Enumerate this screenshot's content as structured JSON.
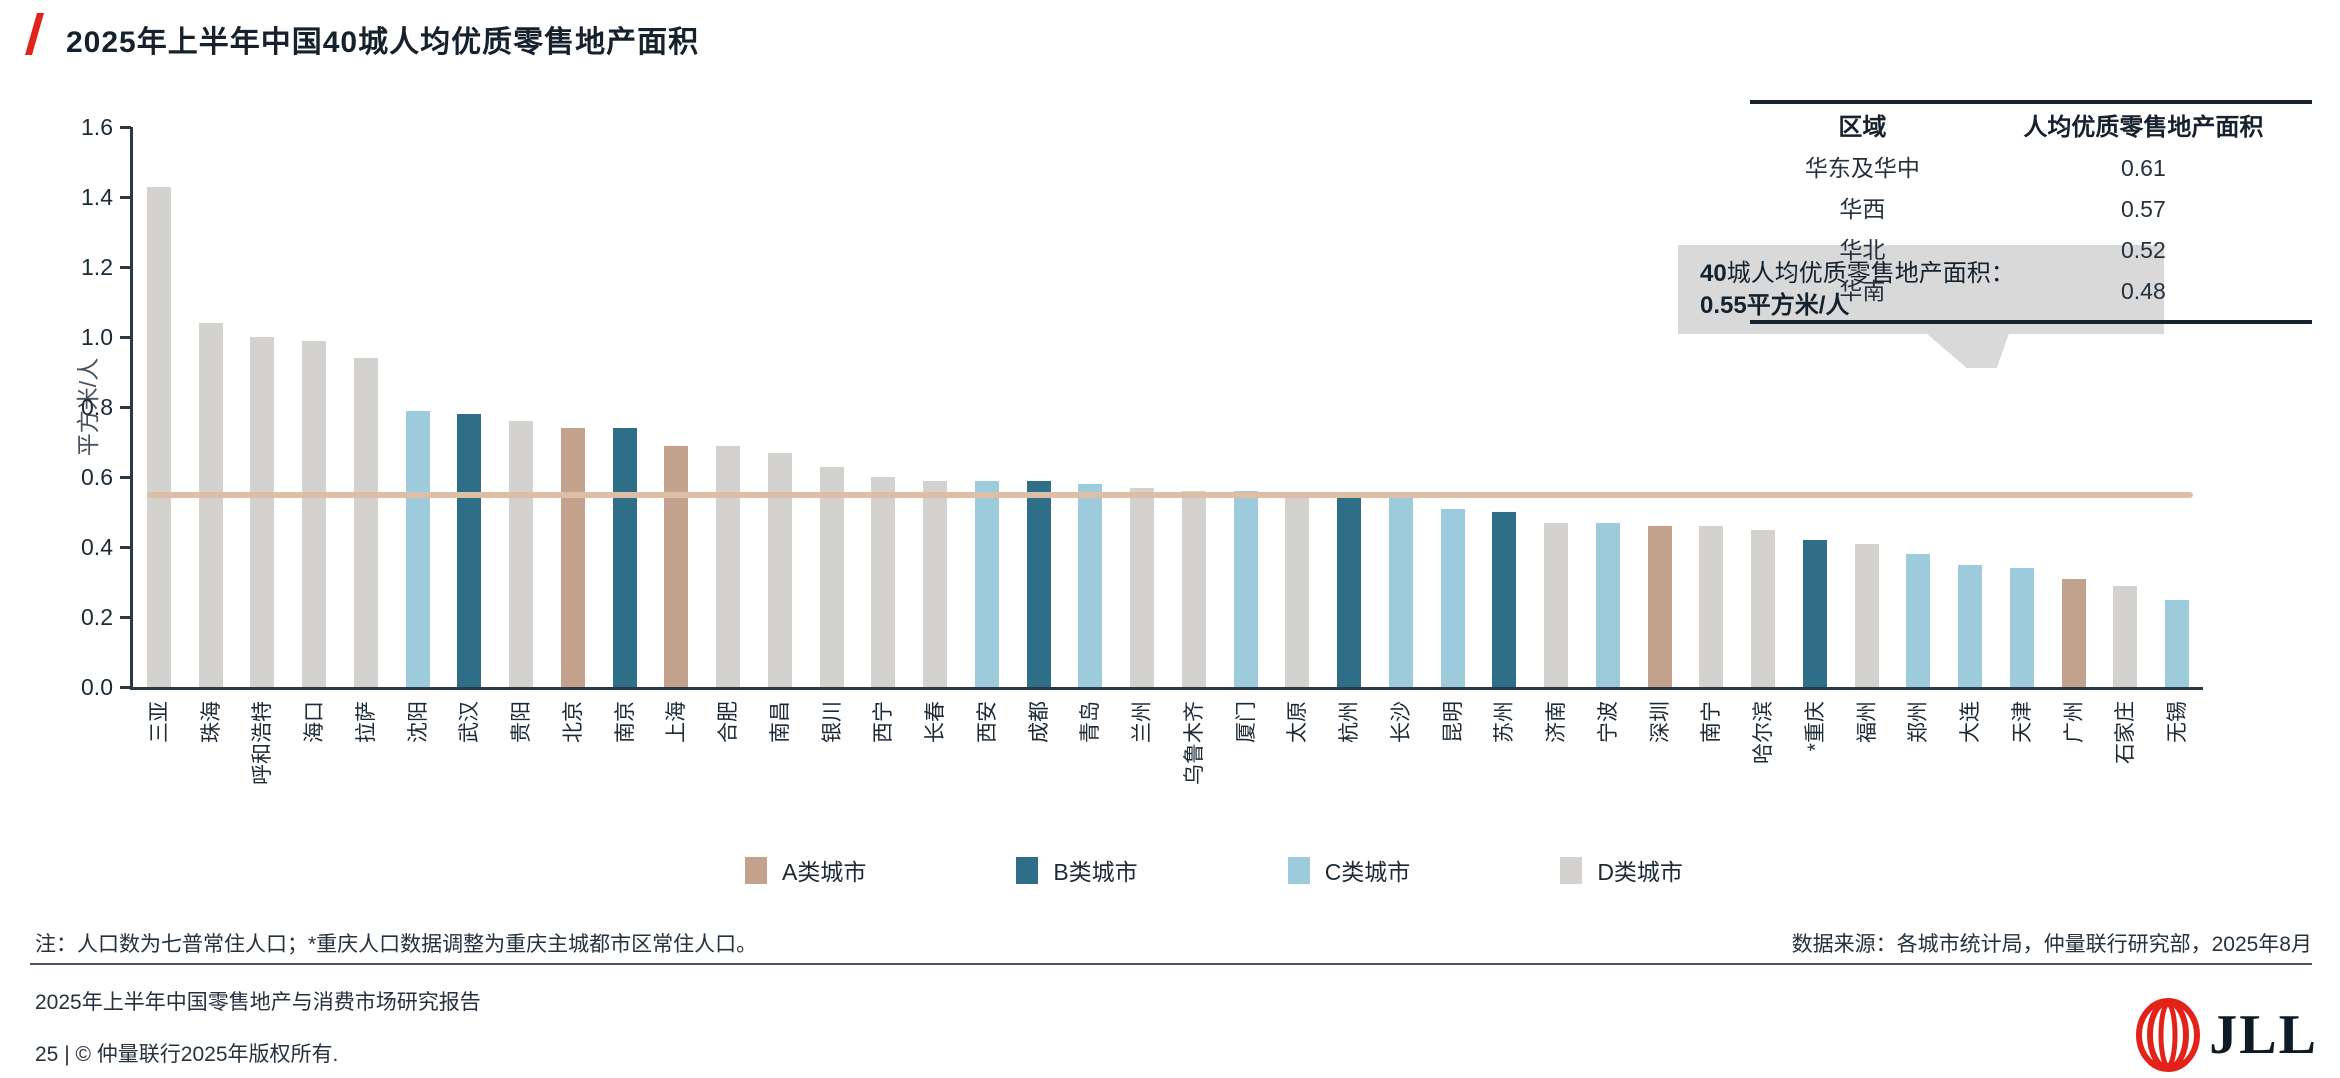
{
  "title": "2025年上半年中国40城人均优质零售地产面积",
  "chart_data": {
    "type": "bar",
    "title": "2025年上半年中国40城人均优质零售地产面积",
    "ylabel": "平方米/人",
    "ylim": [
      0,
      1.6
    ],
    "y_ticks": [
      0.0,
      0.2,
      0.4,
      0.6,
      0.8,
      1.0,
      1.2,
      1.4,
      1.6
    ],
    "grid": false,
    "average_line": 0.55,
    "cities": [
      {
        "name": "三亚",
        "value": 1.43,
        "tier": "D"
      },
      {
        "name": "珠海",
        "value": 1.04,
        "tier": "D"
      },
      {
        "name": "呼和浩特",
        "value": 1.0,
        "tier": "D"
      },
      {
        "name": "海口",
        "value": 0.99,
        "tier": "D"
      },
      {
        "name": "拉萨",
        "value": 0.94,
        "tier": "D"
      },
      {
        "name": "沈阳",
        "value": 0.79,
        "tier": "C"
      },
      {
        "name": "武汉",
        "value": 0.78,
        "tier": "B"
      },
      {
        "name": "贵阳",
        "value": 0.76,
        "tier": "D"
      },
      {
        "name": "北京",
        "value": 0.74,
        "tier": "A"
      },
      {
        "name": "南京",
        "value": 0.74,
        "tier": "B"
      },
      {
        "name": "上海",
        "value": 0.69,
        "tier": "A"
      },
      {
        "name": "合肥",
        "value": 0.69,
        "tier": "D"
      },
      {
        "name": "南昌",
        "value": 0.67,
        "tier": "D"
      },
      {
        "name": "银川",
        "value": 0.63,
        "tier": "D"
      },
      {
        "name": "西宁",
        "value": 0.6,
        "tier": "D"
      },
      {
        "name": "长春",
        "value": 0.59,
        "tier": "D"
      },
      {
        "name": "西安",
        "value": 0.59,
        "tier": "C"
      },
      {
        "name": "成都",
        "value": 0.59,
        "tier": "B"
      },
      {
        "name": "青岛",
        "value": 0.58,
        "tier": "C"
      },
      {
        "name": "兰州",
        "value": 0.57,
        "tier": "D"
      },
      {
        "name": "乌鲁木齐",
        "value": 0.56,
        "tier": "D"
      },
      {
        "name": "厦门",
        "value": 0.56,
        "tier": "C"
      },
      {
        "name": "太原",
        "value": 0.55,
        "tier": "D"
      },
      {
        "name": "杭州",
        "value": 0.54,
        "tier": "B"
      },
      {
        "name": "长沙",
        "value": 0.54,
        "tier": "C"
      },
      {
        "name": "昆明",
        "value": 0.51,
        "tier": "C"
      },
      {
        "name": "苏州",
        "value": 0.5,
        "tier": "B"
      },
      {
        "name": "济南",
        "value": 0.47,
        "tier": "D"
      },
      {
        "name": "宁波",
        "value": 0.47,
        "tier": "C"
      },
      {
        "name": "深圳",
        "value": 0.46,
        "tier": "A"
      },
      {
        "name": "南宁",
        "value": 0.46,
        "tier": "D"
      },
      {
        "name": "哈尔滨",
        "value": 0.45,
        "tier": "D"
      },
      {
        "name": "*重庆",
        "value": 0.42,
        "tier": "B"
      },
      {
        "name": "福州",
        "value": 0.41,
        "tier": "D"
      },
      {
        "name": "郑州",
        "value": 0.38,
        "tier": "C"
      },
      {
        "name": "大连",
        "value": 0.35,
        "tier": "C"
      },
      {
        "name": "天津",
        "value": 0.34,
        "tier": "C"
      },
      {
        "name": "广州",
        "value": 0.31,
        "tier": "A"
      },
      {
        "name": "石家庄",
        "value": 0.29,
        "tier": "D"
      },
      {
        "name": "无锡",
        "value": 0.25,
        "tier": "C"
      }
    ],
    "legend_position": "bottom"
  },
  "legend": {
    "tiers": [
      {
        "key": "A",
        "label": "A类城市",
        "color": "#c2a28c"
      },
      {
        "key": "B",
        "label": "B类城市",
        "color": "#2f6e87"
      },
      {
        "key": "C",
        "label": "C类城市",
        "color": "#9dcbdc"
      },
      {
        "key": "D",
        "label": "D类城市",
        "color": "#d4d2cf"
      }
    ]
  },
  "region_table": {
    "headers": [
      "区域",
      "人均优质零售地产面积"
    ],
    "rows": [
      {
        "region": "华东及华中",
        "value": "0.61"
      },
      {
        "region": "华西",
        "value": "0.57"
      },
      {
        "region": "华北",
        "value": "0.52"
      },
      {
        "region": "华南",
        "value": "0.48"
      }
    ]
  },
  "callout": {
    "bold_prefix": "40",
    "line1_rest": "城人均优质零售地产面积：",
    "line2": "0.55平方米/人"
  },
  "colors": {
    "accent_red": "#e2231a",
    "average_line": "#dcbfa6",
    "text_dark": "#15222e",
    "callout_bg": "#d9d9d9"
  },
  "notes": {
    "note": "注：人口数为七普常住人口；*重庆人口数据调整为重庆主城都市区常住人口。",
    "source": "数据来源：各城市统计局，仲量联行研究部，2025年8月"
  },
  "footer": {
    "report_title": "2025年上半年中国零售地产与消费市场研究报告",
    "copyright": "25 | © 仲量联行2025年版权所有.",
    "logo_text": "JLL"
  }
}
